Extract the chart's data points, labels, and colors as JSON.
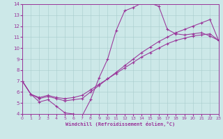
{
  "xlabel": "Windchill (Refroidissement éolien,°C)",
  "xlim": [
    0,
    23
  ],
  "ylim": [
    4,
    14
  ],
  "xticks": [
    0,
    1,
    2,
    3,
    4,
    5,
    6,
    7,
    8,
    9,
    10,
    11,
    12,
    13,
    14,
    15,
    16,
    17,
    18,
    19,
    20,
    21,
    22,
    23
  ],
  "yticks": [
    4,
    5,
    6,
    7,
    8,
    9,
    10,
    11,
    12,
    13,
    14
  ],
  "bg_color": "#cce8e8",
  "line_color": "#993399",
  "line1_x": [
    0,
    1,
    2,
    3,
    4,
    5,
    6,
    7,
    8,
    9,
    10,
    11,
    12,
    13,
    14,
    15,
    16,
    17,
    18,
    19,
    20,
    21,
    22,
    23
  ],
  "line1_y": [
    7.0,
    5.8,
    5.1,
    5.3,
    4.7,
    4.1,
    4.0,
    3.8,
    5.3,
    7.3,
    9.0,
    11.6,
    13.4,
    13.7,
    14.1,
    14.1,
    13.8,
    11.7,
    11.3,
    11.2,
    11.3,
    11.4,
    11.1,
    10.7
  ],
  "line2_x": [
    0,
    1,
    2,
    3,
    4,
    5,
    6,
    7,
    8,
    9,
    10,
    11,
    12,
    13,
    14,
    15,
    16,
    17,
    18,
    19,
    20,
    21,
    22,
    23
  ],
  "line2_y": [
    7.0,
    5.8,
    5.4,
    5.6,
    5.4,
    5.2,
    5.3,
    5.4,
    6.0,
    6.6,
    7.2,
    7.8,
    8.4,
    9.0,
    9.6,
    10.1,
    10.6,
    11.0,
    11.4,
    11.7,
    12.0,
    12.3,
    12.6,
    10.7
  ],
  "line3_x": [
    0,
    1,
    2,
    3,
    4,
    5,
    6,
    7,
    8,
    9,
    10,
    11,
    12,
    13,
    14,
    15,
    16,
    17,
    18,
    19,
    20,
    21,
    22,
    23
  ],
  "line3_y": [
    7.0,
    5.8,
    5.5,
    5.7,
    5.5,
    5.4,
    5.5,
    5.7,
    6.2,
    6.7,
    7.2,
    7.7,
    8.2,
    8.7,
    9.2,
    9.6,
    10.0,
    10.4,
    10.7,
    10.9,
    11.1,
    11.2,
    11.3,
    10.7
  ]
}
